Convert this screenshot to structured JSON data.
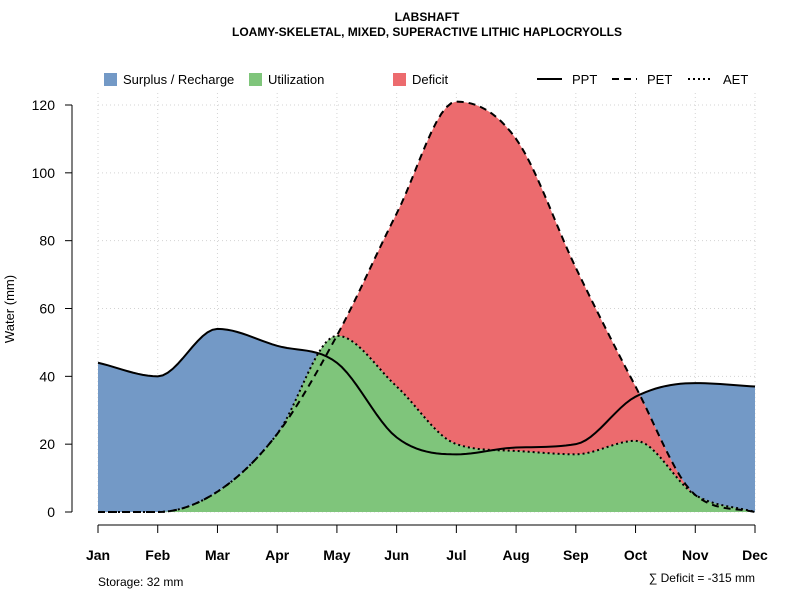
{
  "chart_data": {
    "type": "area",
    "title": "LABSHAFT",
    "subtitle": "LOAMY-SKELETAL, MIXED, SUPERACTIVE LITHIC HAPLOCRYOLLS",
    "xlabel": "",
    "ylabel": "Water (mm)",
    "categories": [
      "Jan",
      "Feb",
      "Mar",
      "Apr",
      "May",
      "Jun",
      "Jul",
      "Aug",
      "Sep",
      "Oct",
      "Nov",
      "Dec"
    ],
    "ylim": [
      0,
      125
    ],
    "yticks": [
      0,
      20,
      40,
      60,
      80,
      100,
      120
    ],
    "grid": true,
    "series": [
      {
        "name": "PPT",
        "style": "solid",
        "values": [
          44,
          40,
          54,
          49,
          44,
          22,
          17,
          19,
          20,
          34,
          38,
          37
        ]
      },
      {
        "name": "PET",
        "style": "dashed",
        "values": [
          0,
          0,
          6,
          23,
          52,
          88,
          121,
          110,
          72,
          37,
          5,
          0
        ]
      },
      {
        "name": "AET",
        "style": "dotted",
        "values": [
          0,
          0,
          6,
          23,
          52,
          37,
          20,
          18,
          17,
          21,
          5,
          0
        ]
      }
    ],
    "legend_items": [
      {
        "label": "Surplus / Recharge",
        "kind": "fill",
        "color": "#7399c6"
      },
      {
        "label": "Utilization",
        "kind": "fill",
        "color": "#7fc57b"
      },
      {
        "label": "Deficit",
        "kind": "fill",
        "color": "#ec6b6e"
      },
      {
        "label": "PPT",
        "kind": "line",
        "style": "solid"
      },
      {
        "label": "PET",
        "kind": "line",
        "style": "dashed"
      },
      {
        "label": "AET",
        "kind": "line",
        "style": "dotted"
      }
    ],
    "legend_position": "top",
    "colors": {
      "surplus": "#7399c6",
      "utilization": "#7fc57b",
      "deficit": "#ec6b6e",
      "line": "#000000",
      "grid": "#d3d3d3"
    },
    "footnote_left": "Storage: 32 mm",
    "footnote_right": "∑ Deficit = -315 mm"
  }
}
